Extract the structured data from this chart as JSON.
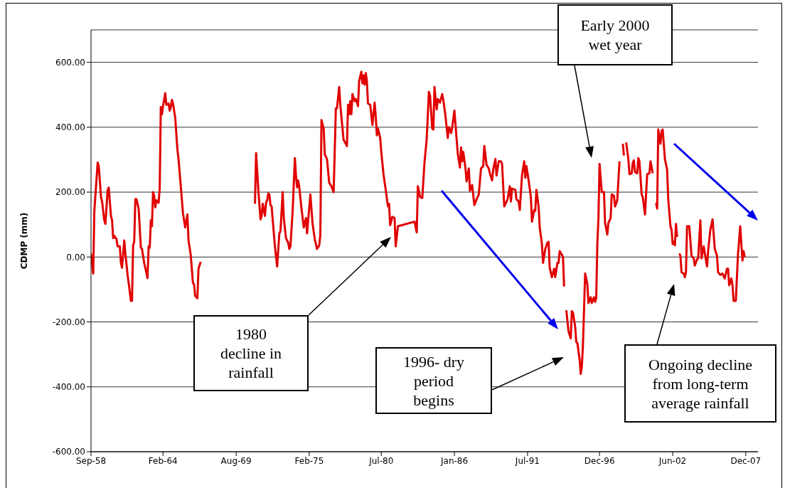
{
  "chart_data": {
    "type": "line",
    "ylabel": "CDMP (mm)",
    "annotations": [
      "Early 2000\nwet year",
      "1980\ndecline in\nrainfall",
      "1996- dry\nperiod\nbegins",
      "Ongoing decline\nfrom long-term\naverage rainfall"
    ],
    "x": [
      "1958-09",
      "1958-11",
      "1958-12",
      "1959-03",
      "1959-04",
      "1959-06",
      "1959-07",
      "1959-09",
      "1959-10",
      "1959-12",
      "1960-01",
      "1960-03",
      "1960-04",
      "1960-05",
      "1960-06",
      "1960-08",
      "1960-09",
      "1960-11",
      "1960-12",
      "1961-01",
      "1961-03",
      "1961-04",
      "1961-06",
      "1961-07",
      "1961-09",
      "1961-10",
      "1961-11",
      "1961-12",
      "1962-01",
      "1962-02",
      "1962-04",
      "1962-06",
      "1962-07",
      "1962-09",
      "1962-12",
      "1963-01",
      "1963-02",
      "1963-03",
      "1963-04",
      "1963-05",
      "1963-06",
      "1963-07",
      "1963-08",
      "1963-10",
      "1963-11",
      "1963-12",
      "1964-01",
      "1964-02",
      "1964-04",
      "1964-05",
      "1964-07",
      "1964-08",
      "1964-09",
      "1964-10",
      "1964-11",
      "1965-01",
      "1965-03",
      "1965-04",
      "1965-07",
      "1965-08",
      "1965-10",
      "1965-12",
      "1966-01",
      "1966-03",
      "1966-05",
      "1966-06",
      "1966-07",
      "1966-09",
      "1966-10",
      "1966-12",
      "1968-09",
      "1971-01",
      "1971-02",
      "1971-04",
      "1971-06",
      "1971-07",
      "1971-08",
      "1971-10",
      "1971-11",
      "1971-12",
      "1972-01",
      "1972-02",
      "1972-03",
      "1972-04",
      "1972-07",
      "1972-09",
      "1972-11",
      "1972-12",
      "1973-02",
      "1973-03",
      "1973-05",
      "1973-07",
      "1973-08",
      "1973-09",
      "1973-11",
      "1974-01",
      "1974-02",
      "1974-03",
      "1974-04",
      "1974-05",
      "1974-07",
      "1974-09",
      "1974-11",
      "1974-12",
      "1975-03",
      "1975-05",
      "1975-07",
      "1975-09",
      "1975-11",
      "1975-12",
      "1976-01",
      "1976-03",
      "1976-04",
      "1976-06",
      "1976-08",
      "1976-10",
      "1976-12",
      "1977-02",
      "1977-03",
      "1977-05",
      "1977-06",
      "1977-09",
      "1977-10",
      "1977-12",
      "1978-01",
      "1978-02",
      "1978-03",
      "1978-04",
      "1978-05",
      "1978-07",
      "1978-08",
      "1978-10",
      "1978-11",
      "1979-01",
      "1979-02",
      "1979-03",
      "1979-04",
      "1979-05",
      "1979-06",
      "1979-07",
      "1979-09",
      "1979-11",
      "1980-01",
      "1980-02",
      "1980-03",
      "1980-04",
      "1980-06",
      "1980-07",
      "1980-09",
      "1980-11",
      "1981-01",
      "1981-02",
      "1981-03",
      "1981-05",
      "1981-07",
      "1981-08",
      "1981-10",
      "1983-01",
      "1983-03",
      "1983-04",
      "1983-06",
      "1983-08",
      "1983-10",
      "1983-12",
      "1984-02",
      "1984-03",
      "1984-05",
      "1984-06",
      "1984-07",
      "1984-08",
      "1984-09",
      "1984-10",
      "1984-12",
      "1985-02",
      "1985-03",
      "1985-05",
      "1985-07",
      "1985-08",
      "1985-10",
      "1985-11",
      "1986-01",
      "1986-04",
      "1986-06",
      "1986-07",
      "1986-08",
      "1986-09",
      "1986-11",
      "1986-12",
      "1987-02",
      "1987-03",
      "1987-05",
      "1987-07",
      "1987-09",
      "1987-11",
      "1988-01",
      "1988-03",
      "1988-04",
      "1988-06",
      "1988-08",
      "1988-09",
      "1988-11",
      "1988-12",
      "1989-02",
      "1989-03",
      "1989-05",
      "1989-07",
      "1989-08",
      "1989-10",
      "1990-01",
      "1990-03",
      "1990-04",
      "1990-05",
      "1990-08",
      "1990-09",
      "1990-11",
      "1990-12",
      "1991-02",
      "1991-04",
      "1991-05",
      "1991-06",
      "1991-08",
      "1991-10",
      "1991-11",
      "1992-01",
      "1992-02",
      "1992-03",
      "1992-05",
      "1992-06",
      "1992-08",
      "1992-09",
      "1992-11",
      "1993-01",
      "1993-02",
      "1993-03",
      "1993-05",
      "1993-07",
      "1993-08",
      "1993-10",
      "1993-11",
      "1993-12",
      "1994-02",
      "1994-03",
      "1994-04",
      "1994-05",
      "1994-06",
      "1994-08",
      "1994-10",
      "1994-11",
      "1994-12",
      "1995-02",
      "1995-03",
      "1995-04",
      "1995-06",
      "1995-07",
      "1995-08",
      "1995-09",
      "1995-11",
      "1996-01",
      "1996-02",
      "1996-04",
      "1996-05",
      "1996-07",
      "1996-08",
      "1996-09",
      "1996-10",
      "1996-11",
      "1996-12",
      "1997-02",
      "1997-04",
      "1997-05",
      "1997-07",
      "1997-08",
      "1997-10",
      "1997-11",
      "1998-01",
      "1998-02",
      "1998-04",
      "1998-06",
      "1998-07",
      "1998-09",
      "1998-10",
      "1998-11",
      "1998-12",
      "1999-02",
      "1999-03",
      "1999-05",
      "1999-06",
      "1999-07",
      "1999-08",
      "1999-10",
      "1999-11",
      "1999-12",
      "2000-02",
      "2000-03",
      "2000-05",
      "2000-07",
      "2000-09",
      "2000-10",
      "2000-12",
      "2001-01",
      "2001-03",
      "2001-04",
      "2001-05",
      "2001-07",
      "2001-08",
      "2001-09",
      "2001-11",
      "2002-01",
      "2002-02",
      "2002-04",
      "2002-05",
      "2002-06",
      "2002-07",
      "2002-08",
      "2002-09",
      "2002-10",
      "2002-11",
      "2002-12",
      "2003-01",
      "2003-02",
      "2003-04",
      "2003-05",
      "2003-06",
      "2003-07",
      "2003-09",
      "2003-11",
      "2004-01",
      "2004-02",
      "2004-04",
      "2004-05",
      "2004-07",
      "2004-08",
      "2004-10",
      "2005-01",
      "2005-02",
      "2005-04",
      "2005-06",
      "2005-08",
      "2005-10",
      "2005-11",
      "2006-01",
      "2006-03",
      "2006-05",
      "2006-07",
      "2006-08",
      "2006-09",
      "2006-11",
      "2006-12",
      "2007-01",
      "2007-03",
      "2007-05",
      "2007-07",
      "2007-08",
      "2007-09",
      "2007-10",
      "2007-11"
    ],
    "values": [
      11,
      -51,
      142,
      291,
      280,
      185,
      171,
      113,
      102,
      207,
      214,
      127,
      113,
      58,
      65,
      55,
      33,
      33,
      -18,
      -33,
      51,
      11,
      -55,
      -80,
      -135,
      -135,
      36,
      47,
      178,
      178,
      149,
      29,
      25,
      -18,
      -65,
      33,
      29,
      113,
      95,
      200,
      189,
      153,
      175,
      167,
      211,
      462,
      440,
      465,
      505,
      469,
      473,
      451,
      462,
      484,
      473,
      429,
      331,
      302,
      178,
      135,
      91,
      131,
      51,
      7,
      -80,
      -84,
      -120,
      -127,
      -36,
      -15,
      null,
      164,
      320,
      207,
      116,
      127,
      164,
      127,
      167,
      175,
      196,
      193,
      160,
      156,
      33,
      -29,
      73,
      80,
      200,
      120,
      58,
      44,
      25,
      33,
      142,
      305,
      251,
      215,
      236,
      215,
      149,
      91,
      120,
      73,
      193,
      102,
      55,
      25,
      36,
      69,
      422,
      396,
      316,
      302,
      229,
      218,
      200,
      458,
      458,
      524,
      469,
      360,
      356,
      342,
      469,
      440,
      480,
      440,
      502,
      480,
      487,
      465,
      542,
      571,
      535,
      560,
      531,
      567,
      542,
      473,
      469,
      407,
      476,
      433,
      375,
      396,
      367,
      324,
      255,
      207,
      156,
      164,
      98,
      124,
      120,
      33,
      95,
      109,
      76,
      218,
      185,
      182,
      291,
      364,
      509,
      498,
      396,
      393,
      524,
      487,
      455,
      487,
      476,
      502,
      484,
      433,
      367,
      400,
      382,
      400,
      451,
      320,
      276,
      338,
      295,
      324,
      273,
      233,
      273,
      204,
      222,
      160,
      178,
      193,
      273,
      280,
      342,
      284,
      273,
      258,
      236,
      269,
      302,
      251,
      295,
      295,
      287,
      156,
      178,
      218,
      171,
      211,
      207,
      178,
      171,
      145,
      251,
      295,
      244,
      280,
      236,
      185,
      109,
      145,
      142,
      207,
      156,
      91,
      40,
      -18,
      25,
      44,
      47,
      -33,
      -62,
      -36,
      -62,
      -18,
      -18,
      18,
      7,
      0,
      -91,
      null,
      -164,
      -229,
      -251,
      -167,
      -171,
      -215,
      -262,
      -265,
      -316,
      -360,
      -338,
      -273,
      -51,
      -84,
      -142,
      -124,
      -142,
      -124,
      -138,
      -127,
      40,
      120,
      287,
      200,
      200,
      105,
      69,
      105,
      120,
      193,
      189,
      156,
      175,
      295,
      null,
      349,
      313,
      null,
      353,
      302,
      255,
      258,
      291,
      298,
      262,
      258,
      305,
      295,
      193,
      185,
      131,
      255,
      258,
      295,
      258,
      null,
      167,
      149,
      393,
      349,
      389,
      393,
      302,
      269,
      178,
      95,
      84,
      40,
      47,
      36,
      102,
      62,
      null,
      11,
      4,
      -47,
      -51,
      -62,
      -47,
      95,
      95,
      4,
      -4,
      -26,
      -7,
      -4,
      113,
      -4,
      33,
      -29,
      18,
      84,
      116,
      25,
      4,
      -47,
      -55,
      -51,
      -66,
      -36,
      -36,
      -87,
      -66,
      -87,
      -135,
      -135,
      11,
      95,
      40,
      -11,
      18,
      0
    ],
    "color": "#e00000",
    "marker": "none",
    "line_style": "solid",
    "xlim": [
      "1958-09",
      "2008-11"
    ],
    "xticks": [
      {
        "value": "1958-09",
        "label": "Sep-58"
      },
      {
        "value": "1964-02",
        "label": "Feb-64"
      },
      {
        "value": "1969-08",
        "label": "Aug-69"
      },
      {
        "value": "1975-02",
        "label": "Feb-75"
      },
      {
        "value": "1980-07",
        "label": "Jul-80"
      },
      {
        "value": "1986-01",
        "label": "Jan-86"
      },
      {
        "value": "1991-07",
        "label": "Jul-91"
      },
      {
        "value": "1996-12",
        "label": "Dec-96"
      },
      {
        "value": "2002-06",
        "label": "Jun-02"
      },
      {
        "value": "2007-12",
        "label": "Dec-07"
      }
    ],
    "ylim": [
      -600,
      700
    ],
    "yticks": [
      {
        "value": -600,
        "label": "-600.00"
      },
      {
        "value": -400,
        "label": "-400.00"
      },
      {
        "value": -200,
        "label": "-200.00"
      },
      {
        "value": 0,
        "label": "0.00"
      },
      {
        "value": 200,
        "label": "200.00"
      },
      {
        "value": 400,
        "label": "400.00"
      },
      {
        "value": 600,
        "label": "600.00"
      }
    ],
    "grid": "y"
  }
}
